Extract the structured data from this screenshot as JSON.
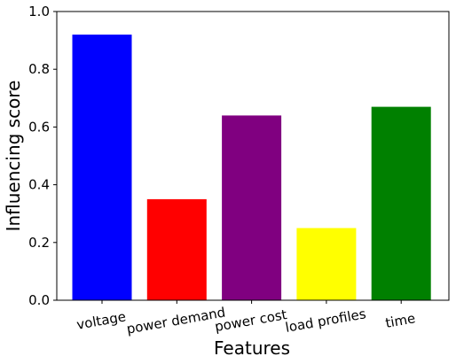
{
  "chart_data": {
    "type": "bar",
    "title": "",
    "xlabel": "Features",
    "ylabel": "Influencing score",
    "categories": [
      "voltage",
      "power demand",
      "power cost",
      "load profiles",
      "time"
    ],
    "values": [
      0.92,
      0.35,
      0.64,
      0.25,
      0.67
    ],
    "colors": [
      "#0000ff",
      "#ff0000",
      "#800080",
      "#ffff00",
      "#008000"
    ],
    "ylim": [
      0,
      1.0
    ],
    "yticks": [
      {
        "value": 0.0,
        "label": "0.0"
      },
      {
        "value": 0.2,
        "label": "0.2"
      },
      {
        "value": 0.4,
        "label": "0.4"
      },
      {
        "value": 0.6,
        "label": "0.6"
      },
      {
        "value": 0.8,
        "label": "0.8"
      },
      {
        "value": 1.0,
        "label": "1.0"
      }
    ],
    "grid": false,
    "legend": "none"
  }
}
